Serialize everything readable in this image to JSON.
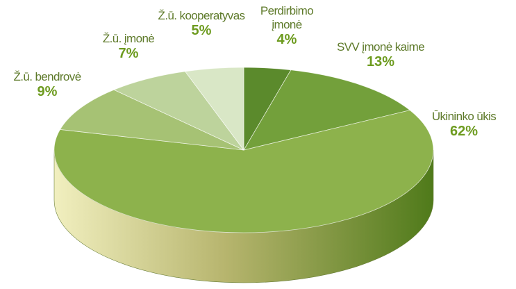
{
  "chart_data": {
    "type": "pie",
    "threed": true,
    "categories": [
      "Perdirbimo įmonė",
      "SVV įmonė kaime",
      "Ūkininko ūkis",
      "Ž.ū. bendrovė",
      "Ž.ū. įmonė",
      "Ž.ū. kooperatyvas"
    ],
    "values": [
      4,
      13,
      62,
      9,
      7,
      5
    ],
    "value_labels": [
      "4%",
      "13%",
      "62%",
      "9%",
      "7%",
      "5%"
    ],
    "colors": [
      "#5b8a2c",
      "#73a03b",
      "#8db24c",
      "#a6c274",
      "#bdd39c",
      "#d9e7c6"
    ]
  }
}
